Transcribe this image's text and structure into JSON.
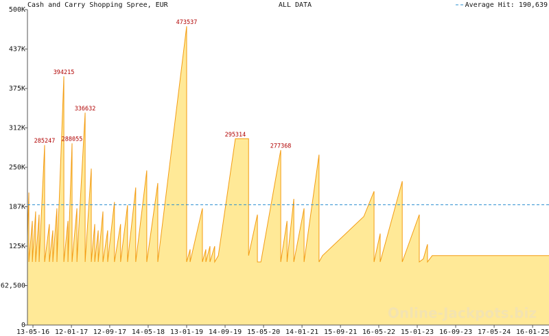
{
  "chart_data": {
    "type": "area",
    "title": "Cash and Carry Shopping Spree, EUR",
    "subtitle": "ALL DATA",
    "watermark": "Online-Jackpots.biz",
    "color": "#f39c12",
    "fill": "#ffe997",
    "x": [
      "2016-04-08",
      "2016-04-17",
      "2016-04-17",
      "2016-05-09",
      "2016-05-09",
      "2016-05-30",
      "2016-05-30",
      "2016-06-21",
      "2016-06-21",
      "2016-07-26",
      "2016-07-26",
      "2016-08-25",
      "2016-08-25",
      "2016-09-16",
      "2016-09-16",
      "2016-10-12",
      "2016-10-12",
      "2016-11-25",
      "2016-11-25",
      "2016-12-21",
      "2016-12-21",
      "2017-01-16",
      "2017-01-16",
      "2017-02-16",
      "2017-02-16",
      "2017-04-09",
      "2017-04-09",
      "2017-05-18",
      "2017-05-18",
      "2017-06-09",
      "2017-06-09",
      "2017-07-01",
      "2017-07-01",
      "2017-07-31",
      "2017-07-31",
      "2017-08-30",
      "2017-08-30",
      "2017-10-12",
      "2017-10-12",
      "2017-11-20",
      "2017-11-20",
      "2018-01-03",
      "2018-01-03",
      "2018-02-24",
      "2018-02-24",
      "2018-05-05",
      "2018-05-05",
      "2018-07-14",
      "2018-07-14",
      "2019-01-13",
      "2019-01-13",
      "2019-02-04",
      "2019-02-04",
      "2019-04-23",
      "2019-04-23",
      "2019-05-15",
      "2019-05-15",
      "2019-06-10",
      "2019-06-10",
      "2019-07-10",
      "2019-07-10",
      "2019-08-02",
      "2019-11-18",
      "2020-02-10",
      "2020-02-10",
      "2020-04-06",
      "2020-04-06",
      "2020-04-28",
      "2020-09-01",
      "2020-09-01",
      "2020-10-11",
      "2020-10-11",
      "2020-11-23",
      "2020-11-23",
      "2021-01-27",
      "2021-01-27",
      "2021-05-02",
      "2021-05-02",
      "2021-05-24",
      "2022-02-10",
      "2022-04-16",
      "2022-04-16",
      "2022-05-25",
      "2022-05-25",
      "2022-10-12",
      "2022-10-12",
      "2023-01-28",
      "2023-01-28",
      "2023-02-23",
      "2023-03-21",
      "2023-03-21",
      "2023-04-20",
      "2025-04-30"
    ],
    "values": [
      140000,
      210000,
      100000,
      165000,
      100000,
      180000,
      100000,
      175000,
      100000,
      285247,
      100000,
      160000,
      100000,
      150000,
      100000,
      185000,
      100000,
      394215,
      100000,
      165000,
      100000,
      288055,
      100000,
      185000,
      100000,
      336632,
      100000,
      248000,
      100000,
      160000,
      100000,
      150000,
      100000,
      180000,
      100000,
      150000,
      100000,
      195000,
      100000,
      160000,
      100000,
      190000,
      100000,
      218000,
      100000,
      245000,
      100000,
      225000,
      100000,
      473537,
      100000,
      120000,
      100000,
      185000,
      100000,
      120000,
      100000,
      125000,
      100000,
      125000,
      100000,
      110000,
      295314,
      295314,
      110000,
      175000,
      100000,
      100000,
      277368,
      100000,
      165000,
      100000,
      200000,
      100000,
      185000,
      100000,
      270000,
      100000,
      110000,
      172000,
      212000,
      100000,
      145000,
      100000,
      228000,
      100000,
      175000,
      100000,
      105000,
      128000,
      100000,
      110000,
      110000
    ],
    "annotations": [
      {
        "x": "2016-07-26",
        "value": 285247
      },
      {
        "x": "2016-11-25",
        "value": 394215
      },
      {
        "x": "2017-01-16",
        "value": 288055
      },
      {
        "x": "2017-04-09",
        "value": 336632
      },
      {
        "x": "2019-01-13",
        "value": 473537
      },
      {
        "x": "2019-11-18",
        "value": 295314
      },
      {
        "x": "2020-09-01",
        "value": 277368
      }
    ],
    "average": {
      "value": 190639,
      "label": "Average Hit: 190,639",
      "color": "#2a8fd0"
    },
    "xlim": [
      "2016-04-08",
      "2025-04-30"
    ],
    "xticks": [
      {
        "value": "2016-05-13",
        "label": "13-05-16"
      },
      {
        "value": "2017-01-12",
        "label": "12-01-17"
      },
      {
        "value": "2017-09-12",
        "label": "12-09-17"
      },
      {
        "value": "2018-05-14",
        "label": "14-05-18"
      },
      {
        "value": "2019-01-13",
        "label": "13-01-19"
      },
      {
        "value": "2019-09-14",
        "label": "14-09-19"
      },
      {
        "value": "2020-05-15",
        "label": "15-05-20"
      },
      {
        "value": "2021-01-14",
        "label": "14-01-21"
      },
      {
        "value": "2021-09-15",
        "label": "15-09-21"
      },
      {
        "value": "2022-05-16",
        "label": "16-05-22"
      },
      {
        "value": "2023-01-15",
        "label": "15-01-23"
      },
      {
        "value": "2023-09-16",
        "label": "16-09-23"
      },
      {
        "value": "2024-05-17",
        "label": "17-05-24"
      },
      {
        "value": "2025-01-16",
        "label": "16-01-25"
      }
    ],
    "ylim": [
      0,
      500000
    ],
    "yticks": [
      0,
      {
        "value": 62500,
        "label": "62,500"
      },
      {
        "value": 125000,
        "label": "125K"
      },
      {
        "value": 187500,
        "label": "187K"
      },
      {
        "value": 250000,
        "label": "250K"
      },
      {
        "value": 312500,
        "label": "312K"
      },
      {
        "value": 375000,
        "label": "375K"
      },
      {
        "value": 437500,
        "label": "437K"
      },
      {
        "value": 500000,
        "label": "500K"
      }
    ]
  }
}
